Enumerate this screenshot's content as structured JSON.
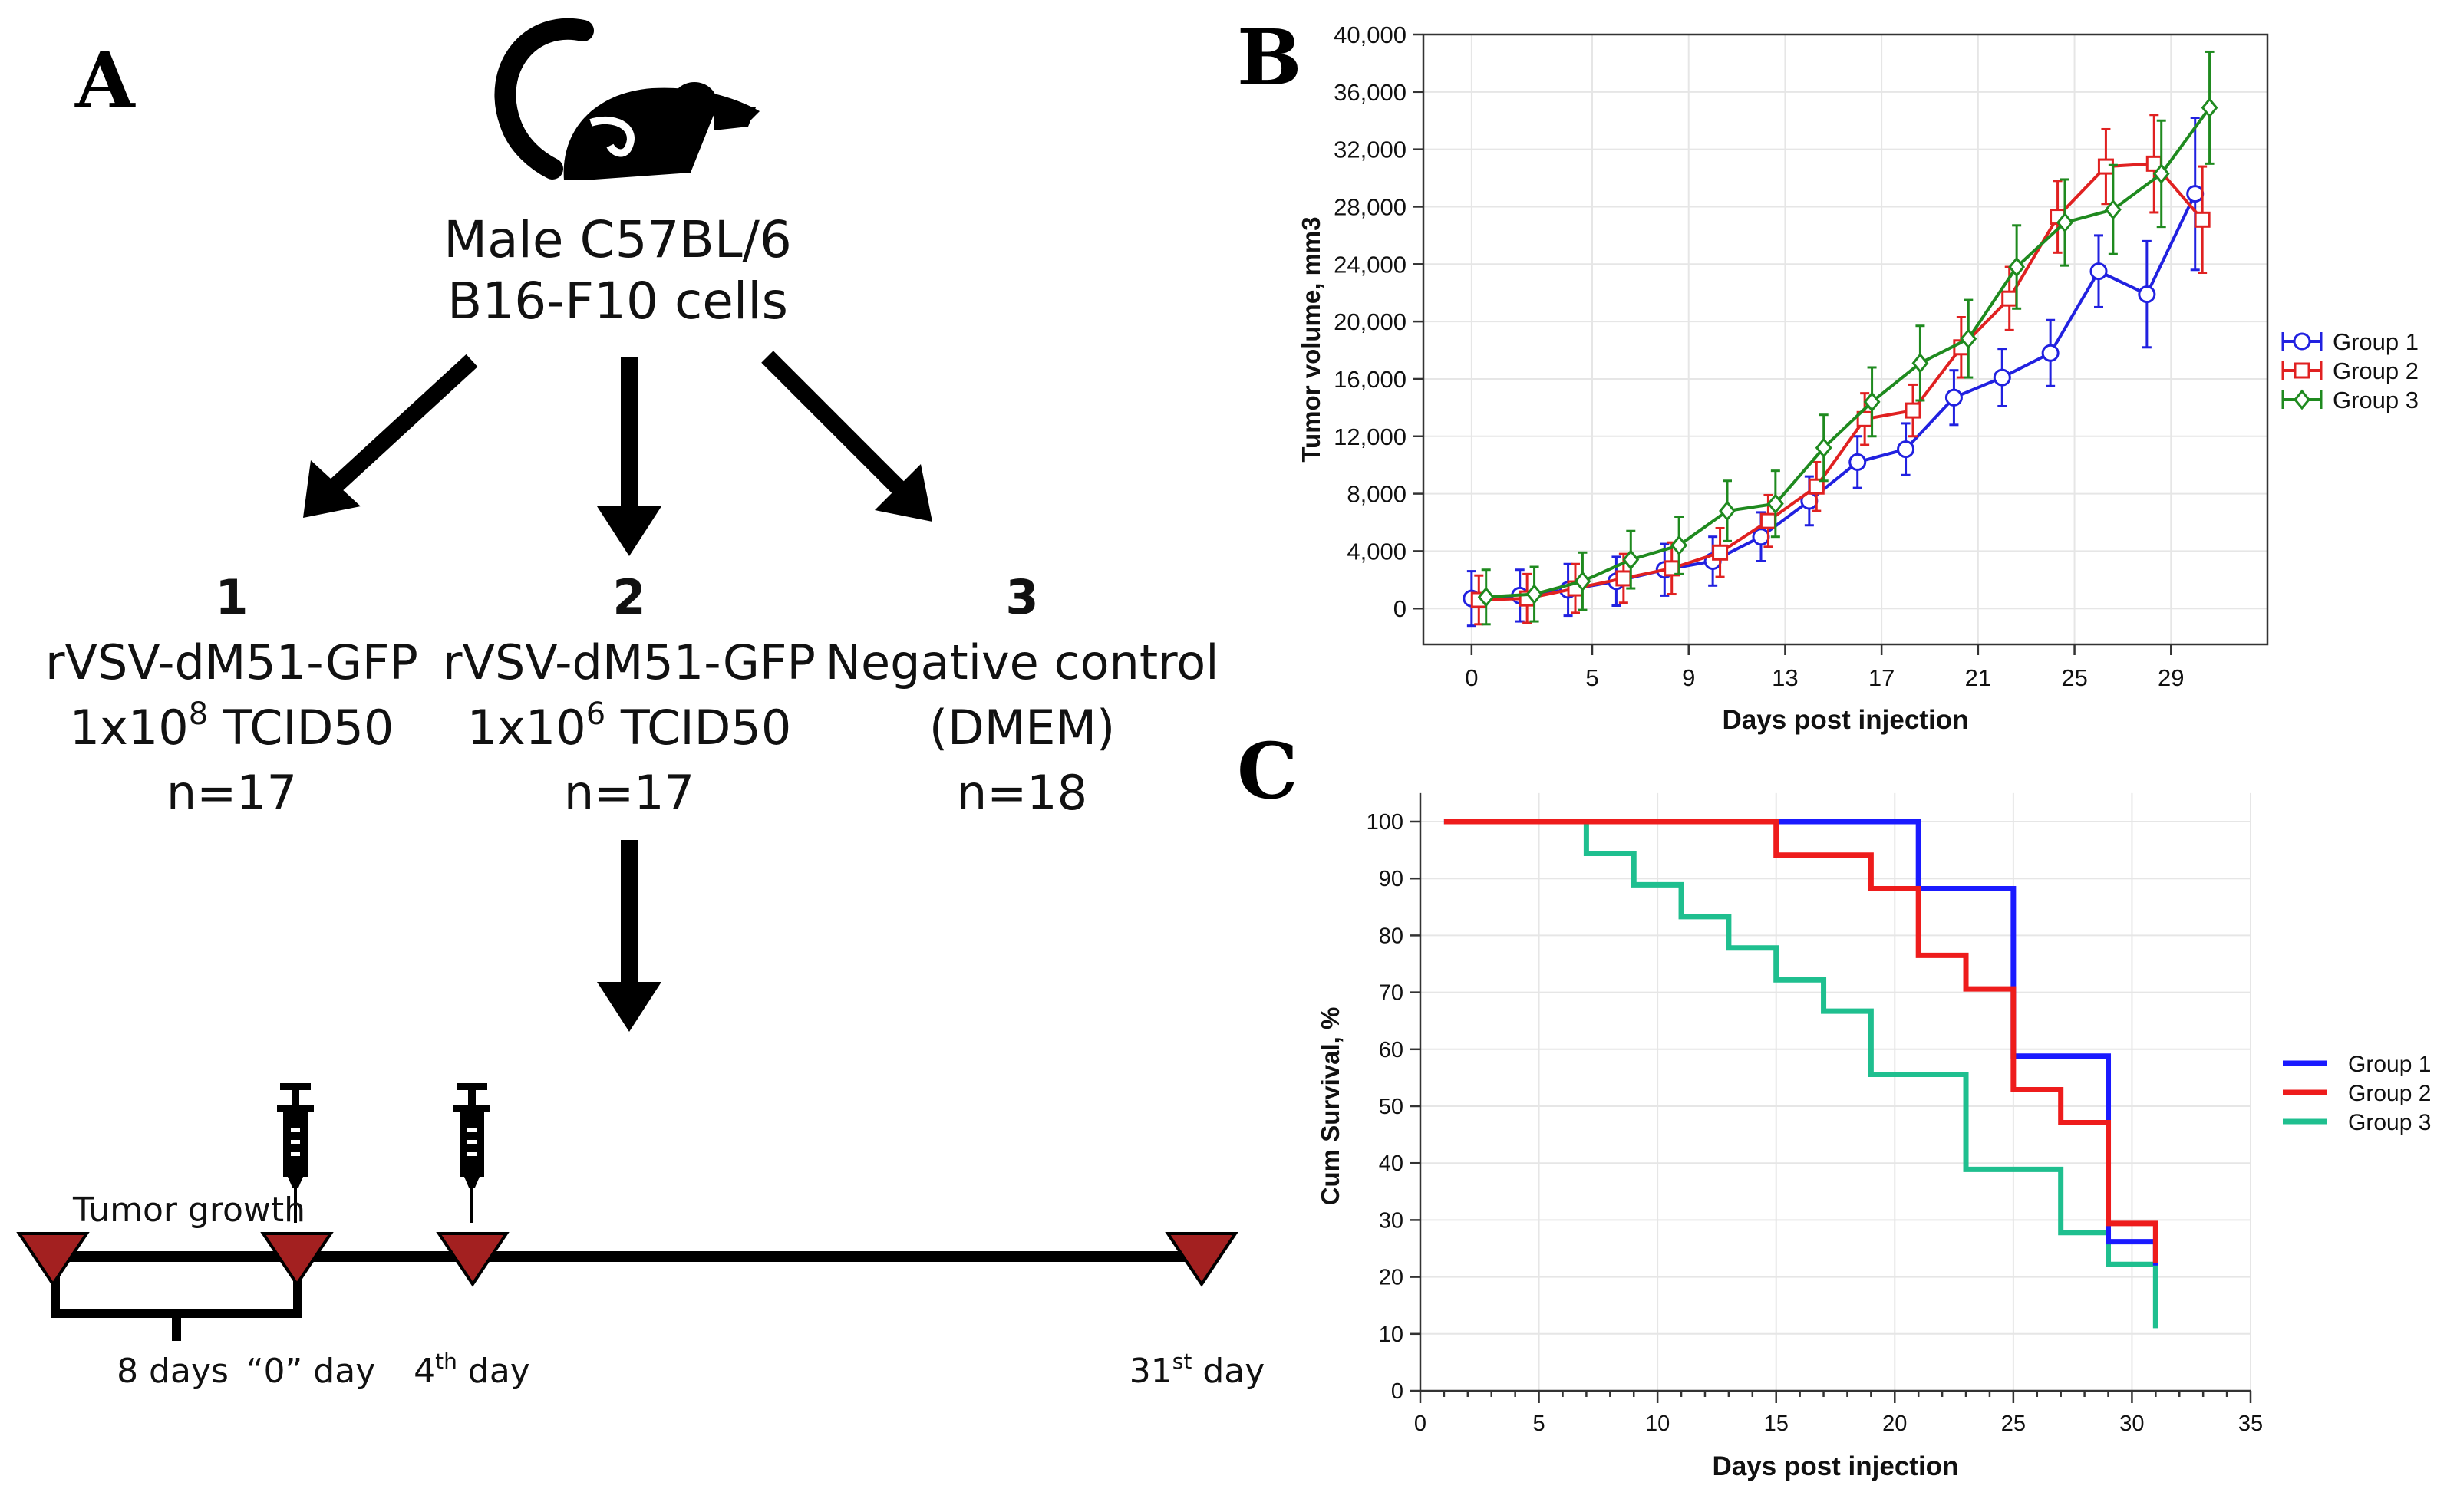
{
  "panel_a": {
    "letter": "A",
    "title_lines": [
      "Male C57BL/6",
      "B16-F10 cells"
    ],
    "groups": [
      {
        "num": "1",
        "name": "rVSV-dM51-GFP",
        "dose_prefix": "1x10",
        "dose_exp": "8",
        "dose_suffix": " TCID50",
        "n": "n=17"
      },
      {
        "num": "2",
        "name": "rVSV-dM51-GFP",
        "dose_prefix": "1x10",
        "dose_exp": "6",
        "dose_suffix": " TCID50",
        "n": "n=17"
      },
      {
        "num": "3",
        "name": "Negative control",
        "dose_text": "(DMEM)",
        "n": "n=18"
      }
    ],
    "timeline": {
      "tumor_growth": "Tumor growth",
      "eight_days": "8 days",
      "day0": "“0” day",
      "day4_num": "4",
      "day4_sup": "th",
      "day4_suffix": " day",
      "day31_num": "31",
      "day31_sup": "st",
      "day31_suffix": " day"
    },
    "icons": {
      "mouse": "mouse-icon",
      "syringe": "syringe-icon",
      "arrow": "arrow-icon",
      "marker": "triangle-marker-icon"
    },
    "colors": {
      "marker": "#a32020"
    }
  },
  "chart_data": [
    {
      "panel": "B",
      "type": "line",
      "ylabel": "Tumor volume, mm3",
      "xlabel": "Days post injection",
      "xlim": [
        -2,
        33
      ],
      "ylim": [
        -2500,
        40000
      ],
      "xticks": [
        0,
        5,
        9,
        13,
        17,
        21,
        25,
        29
      ],
      "yticks": [
        0,
        4000,
        8000,
        12000,
        16000,
        20000,
        24000,
        28000,
        32000,
        36000,
        40000
      ],
      "ytick_labels": [
        "0",
        "4,000",
        "8,000",
        "12,000",
        "16,000",
        "20,000",
        "24,000",
        "28,000",
        "32,000",
        "36,000",
        "40,000"
      ],
      "legend_position": "right",
      "series": [
        {
          "name": "Group 1",
          "color": "#2121e0",
          "marker": "circle",
          "x": [
            0,
            2,
            4,
            6,
            8,
            10,
            12,
            14,
            16,
            18,
            20,
            22,
            24,
            26,
            28,
            30
          ],
          "values": [
            700,
            900,
            1300,
            1900,
            2700,
            3300,
            5000,
            7500,
            10200,
            11100,
            14700,
            16100,
            17800,
            23500,
            21900,
            28900
          ],
          "errors": [
            1900,
            1800,
            1800,
            1700,
            1800,
            1700,
            1700,
            1700,
            1800,
            1800,
            1900,
            2000,
            2300,
            2500,
            3700,
            5300
          ]
        },
        {
          "name": "Group 2",
          "color": "#e02121",
          "marker": "square",
          "x": [
            0.3,
            2.3,
            4.3,
            6.3,
            8.3,
            10.3,
            12.3,
            14.3,
            16.3,
            18.3,
            20.3,
            22.3,
            24.3,
            26.3,
            28.3,
            30.3
          ],
          "values": [
            600,
            700,
            1400,
            2100,
            2800,
            3900,
            6100,
            8500,
            13200,
            13800,
            18200,
            21600,
            27300,
            30800,
            31000,
            27100
          ],
          "errors": [
            1700,
            1700,
            1700,
            1700,
            1800,
            1700,
            1800,
            1700,
            1800,
            1800,
            2100,
            2200,
            2500,
            2600,
            3400,
            3700
          ]
        },
        {
          "name": "Group 3",
          "color": "#1f8a1f",
          "marker": "diamond",
          "x": [
            0.6,
            2.6,
            4.6,
            6.6,
            8.6,
            10.6,
            12.6,
            14.6,
            16.6,
            18.6,
            20.6,
            22.6,
            24.6,
            26.6,
            28.6,
            30.6
          ],
          "values": [
            800,
            1000,
            1900,
            3400,
            4400,
            6800,
            7300,
            11200,
            14400,
            17100,
            18800,
            23800,
            26900,
            27800,
            30300,
            34900
          ],
          "errors": [
            1900,
            1900,
            2000,
            2000,
            2000,
            2100,
            2300,
            2300,
            2400,
            2600,
            2700,
            2900,
            3000,
            3100,
            3700,
            3900
          ]
        }
      ]
    },
    {
      "panel": "C",
      "type": "line",
      "subtype": "step",
      "ylabel": "Cum Survival, %",
      "xlabel": "Days post injection",
      "xlim": [
        0,
        35
      ],
      "ylim": [
        0,
        105
      ],
      "xticks": [
        0,
        5,
        10,
        15,
        20,
        25,
        30,
        35
      ],
      "yticks": [
        0,
        10,
        20,
        30,
        40,
        50,
        60,
        70,
        80,
        90,
        100
      ],
      "legend_position": "right",
      "series": [
        {
          "name": "Group 1",
          "color": "#1a1aff",
          "x": [
            1,
            21,
            21,
            25,
            25,
            29,
            29,
            31,
            31
          ],
          "values": [
            100,
            100,
            88.2,
            88.2,
            58.8,
            58.8,
            26.2,
            26.2,
            22
          ]
        },
        {
          "name": "Group 2",
          "color": "#ee1c1c",
          "x": [
            1,
            15,
            15,
            19,
            19,
            21,
            21,
            23,
            23,
            25,
            25,
            27,
            27,
            29,
            29,
            31,
            31
          ],
          "values": [
            100,
            100,
            94.1,
            94.1,
            88.2,
            88.2,
            76.5,
            76.5,
            70.6,
            70.6,
            52.9,
            52.9,
            47.1,
            47.1,
            29.4,
            29.4,
            22.4
          ]
        },
        {
          "name": "Group 3",
          "color": "#1fbf8f",
          "x": [
            1,
            7,
            7,
            9,
            9,
            11,
            11,
            13,
            13,
            15,
            15,
            17,
            17,
            19,
            19,
            23,
            23,
            27,
            27,
            29,
            29,
            31,
            31
          ],
          "values": [
            100,
            100,
            94.4,
            94.4,
            88.9,
            88.9,
            83.3,
            83.3,
            77.8,
            77.8,
            72.2,
            72.2,
            66.7,
            66.7,
            55.6,
            55.6,
            38.9,
            38.9,
            27.8,
            27.8,
            22.2,
            22.2,
            11
          ]
        }
      ]
    }
  ]
}
